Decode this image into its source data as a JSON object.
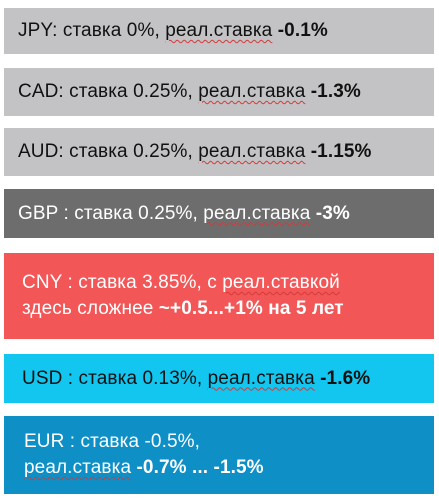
{
  "colors": {
    "jpy": "#c3c3c5",
    "cad": "#c3c3c5",
    "aud": "#c3c3c5",
    "gbp": "#6d6d6d",
    "cny": "#f25657",
    "usd": "#12c6f0",
    "eur": "#0e8fc6"
  },
  "rows": {
    "jpy": {
      "code": "JPY",
      "rate": ": ставка 0%, ",
      "real_label": "реал.ставка",
      "real_value": " -0.1%"
    },
    "cad": {
      "code": "CAD",
      "rate": ": ставка 0.25%, ",
      "real_label": "реал.ставка",
      "real_value": " -1.3%"
    },
    "aud": {
      "code": "AUD",
      "rate": ": ставка 0.25%, ",
      "real_label": "реал.ставка",
      "real_value": " -1.15%"
    },
    "gbp": {
      "code": "GBP",
      "rate": " : ставка 0.25%, ",
      "real_label": "реал.ставка",
      "real_value": " -3%"
    },
    "cny": {
      "code": "CNY",
      "rate": " : ставка 3.85%, с ",
      "real_label": "реал.ставкой",
      "line2_plain": "здесь сложнее ",
      "line2_bold": "~+0.5...+1% на 5 лет"
    },
    "usd": {
      "code": "USD",
      "rate": " : ставка 0.13%, ",
      "real_label": "реал.ставка",
      "real_value": " -1.6%"
    },
    "eur": {
      "code": "EUR",
      "rate": " : ставка -0.5%,",
      "real_label": "реал.ставка",
      "real_value": " -0.7% ... -1.5%"
    }
  }
}
